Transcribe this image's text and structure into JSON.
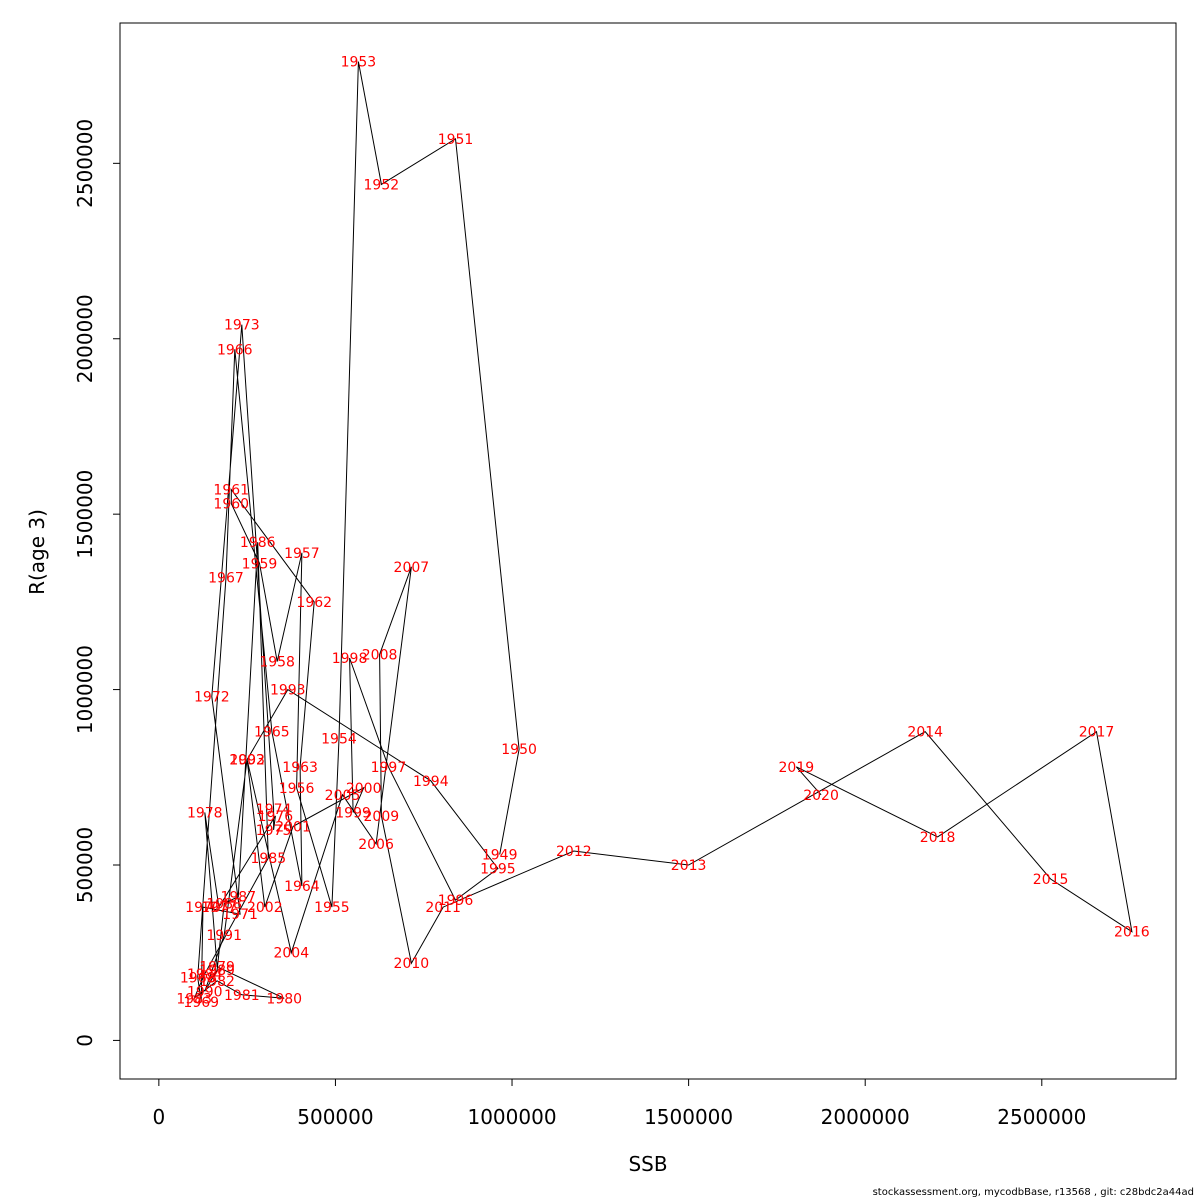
{
  "chart_data": {
    "type": "line",
    "xlabel": "SSB",
    "ylabel": "R(age 3)",
    "xlim": [
      -110000,
      2880000
    ],
    "ylim": [
      -110000,
      2900000
    ],
    "x_ticks": [
      0,
      500000,
      1000000,
      1500000,
      2000000,
      2500000
    ],
    "y_ticks": [
      0,
      500000,
      1000000,
      1500000,
      2000000,
      2500000
    ],
    "x_tick_labels": [
      "0",
      "500000",
      "1000000",
      "1500000",
      "2000000",
      "2500000"
    ],
    "y_tick_labels": [
      "0",
      "500000",
      "1000000",
      "1500000",
      "2000000",
      "2500000"
    ],
    "grid": false,
    "line_color": "#000000",
    "label_color": "#ff0000",
    "points": [
      {
        "year": "1949",
        "x": 965000,
        "y": 530000
      },
      {
        "year": "1950",
        "x": 1020000,
        "y": 830000
      },
      {
        "year": "1951",
        "x": 840000,
        "y": 2570000
      },
      {
        "year": "1952",
        "x": 630000,
        "y": 2440000
      },
      {
        "year": "1953",
        "x": 565000,
        "y": 2790000
      },
      {
        "year": "1954",
        "x": 510000,
        "y": 860000
      },
      {
        "year": "1955",
        "x": 490000,
        "y": 380000
      },
      {
        "year": "1956",
        "x": 390000,
        "y": 720000
      },
      {
        "year": "1957",
        "x": 405000,
        "y": 1390000
      },
      {
        "year": "1958",
        "x": 335000,
        "y": 1080000
      },
      {
        "year": "1959",
        "x": 285000,
        "y": 1360000
      },
      {
        "year": "1960",
        "x": 205000,
        "y": 1530000
      },
      {
        "year": "1961",
        "x": 205000,
        "y": 1570000
      },
      {
        "year": "1962",
        "x": 440000,
        "y": 1250000
      },
      {
        "year": "1963",
        "x": 400000,
        "y": 780000
      },
      {
        "year": "1964",
        "x": 405000,
        "y": 440000
      },
      {
        "year": "1965",
        "x": 320000,
        "y": 880000
      },
      {
        "year": "1966",
        "x": 215000,
        "y": 1970000
      },
      {
        "year": "1967",
        "x": 190000,
        "y": 1320000
      },
      {
        "year": "1968",
        "x": 110000,
        "y": 180000
      },
      {
        "year": "1969",
        "x": 120000,
        "y": 110000
      },
      {
        "year": "1970",
        "x": 125000,
        "y": 380000
      },
      {
        "year": "1971",
        "x": 230000,
        "y": 360000
      },
      {
        "year": "1972",
        "x": 150000,
        "y": 980000
      },
      {
        "year": "1973",
        "x": 235000,
        "y": 2040000
      },
      {
        "year": "1974",
        "x": 325000,
        "y": 660000
      },
      {
        "year": "1975",
        "x": 325000,
        "y": 600000
      },
      {
        "year": "1976",
        "x": 330000,
        "y": 640000
      },
      {
        "year": "1977",
        "x": 170000,
        "y": 380000
      },
      {
        "year": "1978",
        "x": 130000,
        "y": 650000
      },
      {
        "year": "1979",
        "x": 165000,
        "y": 210000
      },
      {
        "year": "1980",
        "x": 355000,
        "y": 120000
      },
      {
        "year": "1981",
        "x": 235000,
        "y": 130000
      },
      {
        "year": "1982",
        "x": 165000,
        "y": 170000
      },
      {
        "year": "1983",
        "x": 100000,
        "y": 120000
      },
      {
        "year": "1984",
        "x": 130000,
        "y": 190000
      },
      {
        "year": "1985",
        "x": 310000,
        "y": 520000
      },
      {
        "year": "1986",
        "x": 280000,
        "y": 1420000
      },
      {
        "year": "1987",
        "x": 225000,
        "y": 410000
      },
      {
        "year": "1988",
        "x": 185000,
        "y": 390000
      },
      {
        "year": "1989",
        "x": 165000,
        "y": 200000
      },
      {
        "year": "1990",
        "x": 130000,
        "y": 140000
      },
      {
        "year": "1991",
        "x": 185000,
        "y": 300000
      },
      {
        "year": "1992",
        "x": 250000,
        "y": 800000
      },
      {
        "year": "1993",
        "x": 365000,
        "y": 1000000
      },
      {
        "year": "1994",
        "x": 770000,
        "y": 740000
      },
      {
        "year": "1995",
        "x": 960000,
        "y": 490000
      },
      {
        "year": "1996",
        "x": 840000,
        "y": 400000
      },
      {
        "year": "1997",
        "x": 650000,
        "y": 780000
      },
      {
        "year": "1998",
        "x": 540000,
        "y": 1090000
      },
      {
        "year": "1999",
        "x": 550000,
        "y": 650000
      },
      {
        "year": "2000",
        "x": 580000,
        "y": 720000
      },
      {
        "year": "2001",
        "x": 380000,
        "y": 610000
      },
      {
        "year": "2002",
        "x": 300000,
        "y": 380000
      },
      {
        "year": "2003",
        "x": 250000,
        "y": 800000
      },
      {
        "year": "2004",
        "x": 375000,
        "y": 250000
      },
      {
        "year": "2005",
        "x": 520000,
        "y": 700000
      },
      {
        "year": "2006",
        "x": 615000,
        "y": 560000
      },
      {
        "year": "2007",
        "x": 715000,
        "y": 1350000
      },
      {
        "year": "2008",
        "x": 625000,
        "y": 1100000
      },
      {
        "year": "2009",
        "x": 630000,
        "y": 640000
      },
      {
        "year": "2010",
        "x": 715000,
        "y": 220000
      },
      {
        "year": "2011",
        "x": 805000,
        "y": 380000
      },
      {
        "year": "2012",
        "x": 1175000,
        "y": 540000
      },
      {
        "year": "2013",
        "x": 1500000,
        "y": 500000
      },
      {
        "year": "2014",
        "x": 2170000,
        "y": 880000
      },
      {
        "year": "2015",
        "x": 2525000,
        "y": 460000
      },
      {
        "year": "2016",
        "x": 2755000,
        "y": 310000
      },
      {
        "year": "2017",
        "x": 2655000,
        "y": 880000
      },
      {
        "year": "2018",
        "x": 2205000,
        "y": 580000
      },
      {
        "year": "2019",
        "x": 1805000,
        "y": 780000
      },
      {
        "year": "2020",
        "x": 1875000,
        "y": 700000
      }
    ]
  },
  "footer_text": "stockassessment.org, mycodbBase, r13568 , git: c28bdc2a44ad"
}
